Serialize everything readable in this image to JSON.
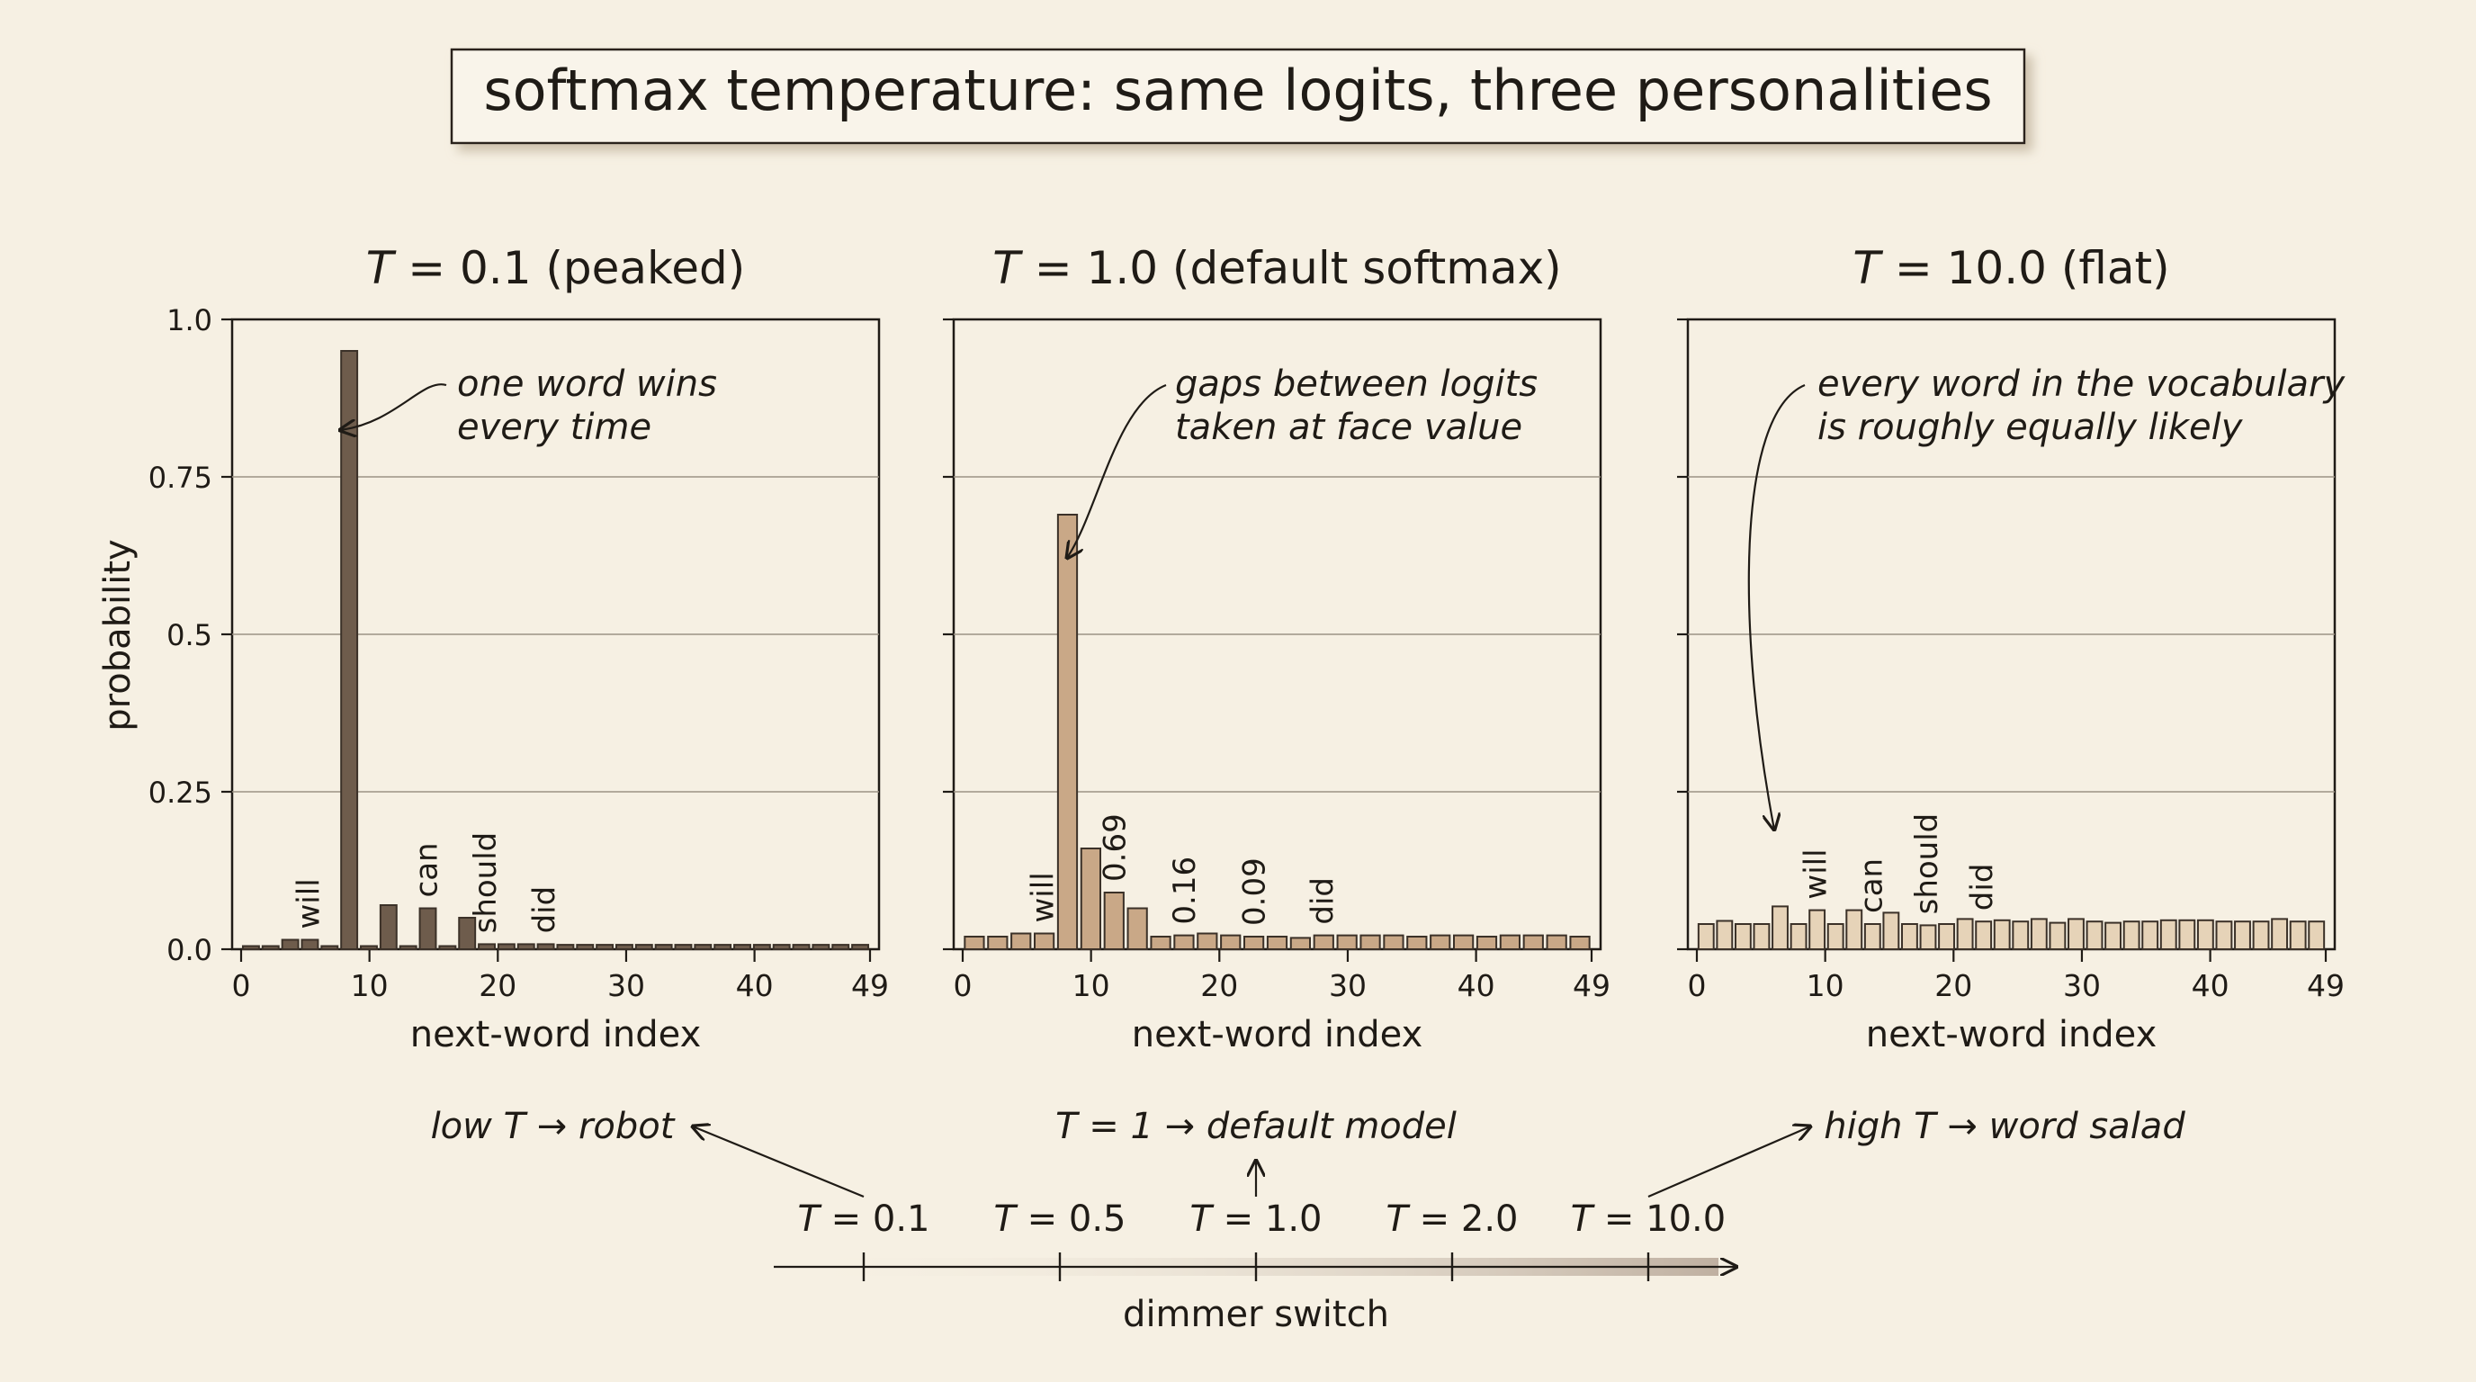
{
  "title": "softmax temperature: same logits, three personalities",
  "ylabel": "probability",
  "chart_data": [
    {
      "type": "bar",
      "panel_title_T": "T",
      "panel_title_rest": " = 0.1 (peaked)",
      "xlabel": "next-word index",
      "ylabel": "probability",
      "ylim": [
        0,
        1.0
      ],
      "xlim": [
        0,
        49
      ],
      "x_ticks": [
        0,
        10,
        20,
        30,
        40,
        49
      ],
      "y_ticks": [
        0.0,
        0.25,
        0.5,
        0.75,
        1.0
      ],
      "y_tick_labels": [
        "0.0",
        "0.25",
        "0.5",
        "0.75",
        "1.0"
      ],
      "grid": true,
      "bar_color": "#6e5c4c",
      "values": [
        0.005,
        0.005,
        0.015,
        0.015,
        0.005,
        0.95,
        0.005,
        0.07,
        0.005,
        0.065,
        0.005,
        0.05,
        0.008,
        0.008,
        0.008,
        0.008,
        0.007,
        0.007,
        0.007,
        0.007,
        0.007,
        0.007,
        0.007,
        0.007,
        0.007,
        0.007,
        0.007,
        0.007,
        0.007,
        0.007,
        0.007,
        0.007
      ],
      "word_labels": [
        {
          "index": 3,
          "text": "will"
        },
        {
          "index": 9,
          "text": "can"
        },
        {
          "index": 12,
          "text": "should"
        },
        {
          "index": 15,
          "text": "did"
        }
      ],
      "value_labels": [],
      "annotation": "one word wins\nevery time"
    },
    {
      "type": "bar",
      "panel_title_T": "T",
      "panel_title_rest": " = 1.0 (default softmax)",
      "xlabel": "next-word index",
      "ylim": [
        0,
        1.0
      ],
      "xlim": [
        0,
        49
      ],
      "x_ticks": [
        0,
        10,
        20,
        30,
        40,
        49
      ],
      "grid": true,
      "bar_color": "#c9a887",
      "values": [
        0.02,
        0.02,
        0.025,
        0.025,
        0.69,
        0.16,
        0.09,
        0.065,
        0.02,
        0.022,
        0.025,
        0.022,
        0.02,
        0.02,
        0.018,
        0.022,
        0.022,
        0.022,
        0.022,
        0.02,
        0.022,
        0.022,
        0.02,
        0.022,
        0.022,
        0.022,
        0.02
      ],
      "word_labels": [
        {
          "index": 3,
          "text": "will"
        },
        {
          "index": 15,
          "text": "did"
        }
      ],
      "value_labels": [
        {
          "index": 6,
          "text": "0.69"
        },
        {
          "index": 9,
          "text": "0.16"
        },
        {
          "index": 12,
          "text": "0.09"
        }
      ],
      "annotation": "gaps between logits\ntaken at face value"
    },
    {
      "type": "bar",
      "panel_title_T": "T",
      "panel_title_rest": " = 10.0 (flat)",
      "xlabel": "next-word index",
      "ylim": [
        0,
        1.0
      ],
      "xlim": [
        0,
        49
      ],
      "x_ticks": [
        0,
        10,
        20,
        30,
        40,
        49
      ],
      "grid": true,
      "bar_color": "#e6d3b8",
      "values": [
        0.04,
        0.045,
        0.04,
        0.04,
        0.068,
        0.04,
        0.062,
        0.04,
        0.062,
        0.04,
        0.058,
        0.04,
        0.038,
        0.04,
        0.048,
        0.044,
        0.046,
        0.044,
        0.048,
        0.042,
        0.048,
        0.044,
        0.042,
        0.044,
        0.044,
        0.046,
        0.046,
        0.046,
        0.044,
        0.044,
        0.044,
        0.048,
        0.044,
        0.044
      ],
      "word_labels": [
        {
          "index": 6,
          "text": "will"
        },
        {
          "index": 9,
          "text": "can"
        },
        {
          "index": 12,
          "text": "should"
        },
        {
          "index": 15,
          "text": "did"
        }
      ],
      "value_labels": [],
      "annotation": "every word in the vocabulary\nis roughly equally likely"
    }
  ],
  "dimmer": {
    "label": "dimmer switch",
    "ticks": [
      "T = 0.1",
      "T = 0.5",
      "T = 1.0",
      "T = 2.0",
      "T = 10.0"
    ],
    "left_note": "low T → robot",
    "center_note": "T = 1 → default model",
    "right_note": "high T → word salad"
  }
}
